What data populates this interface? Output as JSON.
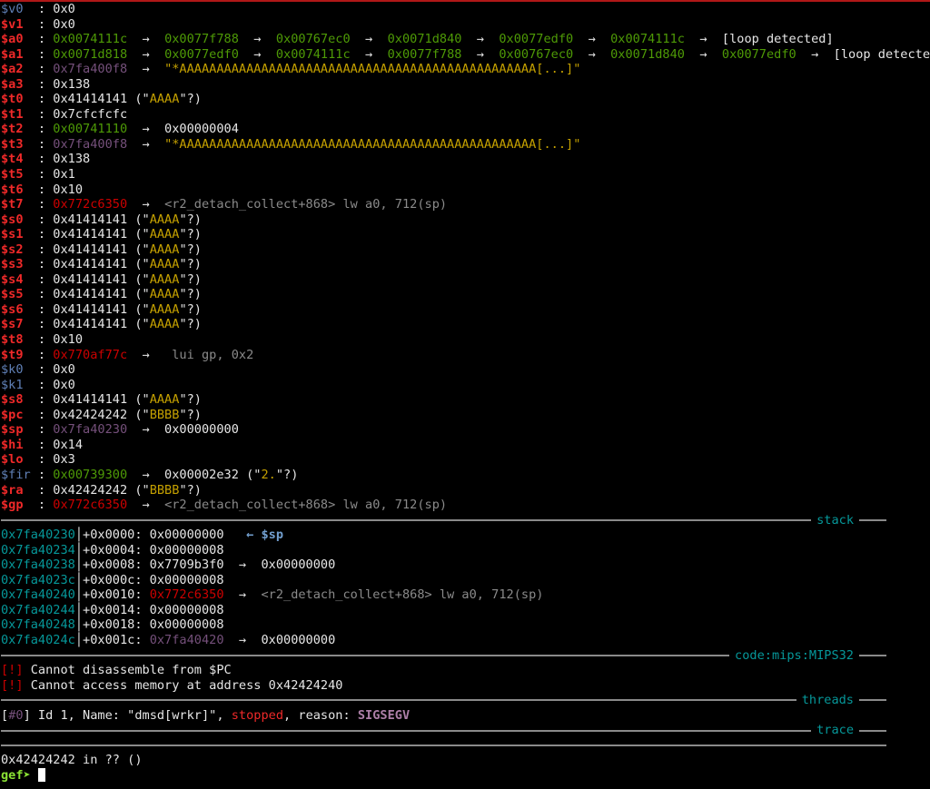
{
  "colors": {
    "accent_border": "#b01818",
    "register": "#ef2929",
    "code_pointer": "#cc0000",
    "heap": "#4e9a06",
    "stack": "#75507b",
    "string": "#c4a000",
    "section_title": "#06989a"
  },
  "lines": [
    [
      [
        "$v0  ",
        "c-blue"
      ],
      [
        ": 0x0",
        "c-w"
      ]
    ],
    [
      [
        "$v1  ",
        "c-red"
      ],
      [
        ": 0x0",
        "c-w"
      ]
    ],
    [
      [
        "$a0  ",
        "c-red"
      ],
      [
        ": ",
        "c-w"
      ],
      [
        "0x0074111c",
        "c-green"
      ],
      [
        "  →  ",
        "c-w"
      ],
      [
        "0x0077f788",
        "c-green"
      ],
      [
        "  →  ",
        "c-w"
      ],
      [
        "0x00767ec0",
        "c-green"
      ],
      [
        "  →  ",
        "c-w"
      ],
      [
        "0x0071d840",
        "c-green"
      ],
      [
        "  →  ",
        "c-w"
      ],
      [
        "0x0077edf0",
        "c-green"
      ],
      [
        "  →  ",
        "c-w"
      ],
      [
        "0x0074111c",
        "c-green"
      ],
      [
        "  →  [loop detected]",
        "c-w"
      ]
    ],
    [
      [
        "$a1  ",
        "c-red"
      ],
      [
        ": ",
        "c-w"
      ],
      [
        "0x0071d818",
        "c-green"
      ],
      [
        "  →  ",
        "c-w"
      ],
      [
        "0x0077edf0",
        "c-green"
      ],
      [
        "  →  ",
        "c-w"
      ],
      [
        "0x0074111c",
        "c-green"
      ],
      [
        "  →  ",
        "c-w"
      ],
      [
        "0x0077f788",
        "c-green"
      ],
      [
        "  →  ",
        "c-w"
      ],
      [
        "0x00767ec0",
        "c-green"
      ],
      [
        "  →  ",
        "c-w"
      ],
      [
        "0x0071d840",
        "c-green"
      ],
      [
        "  →  ",
        "c-w"
      ],
      [
        "0x0077edf0",
        "c-green"
      ],
      [
        "  →  [loop detected]",
        "c-w"
      ]
    ],
    [
      [
        "$a2  ",
        "c-red"
      ],
      [
        ": ",
        "c-w"
      ],
      [
        "0x7fa400f8",
        "c-purple"
      ],
      [
        "  →  ",
        "c-w"
      ],
      [
        "\"*AAAAAAAAAAAAAAAAAAAAAAAAAAAAAAAAAAAAAAAAAAAAAAAA[...]\"",
        "c-yel"
      ]
    ],
    [
      [
        "$a3  ",
        "c-red"
      ],
      [
        ": 0x138",
        "c-w"
      ]
    ],
    [
      [
        "$t0  ",
        "c-red"
      ],
      [
        ": 0x41414141 (\"",
        "c-w"
      ],
      [
        "AAAA",
        "c-yel"
      ],
      [
        "\"?)",
        "c-w"
      ]
    ],
    [
      [
        "$t1  ",
        "c-red"
      ],
      [
        ": 0x7cfcfcfc",
        "c-w"
      ]
    ],
    [
      [
        "$t2  ",
        "c-red"
      ],
      [
        ": ",
        "c-w"
      ],
      [
        "0x00741110",
        "c-green"
      ],
      [
        "  →  0x00000004",
        "c-w"
      ]
    ],
    [
      [
        "$t3  ",
        "c-red"
      ],
      [
        ": ",
        "c-w"
      ],
      [
        "0x7fa400f8",
        "c-purple"
      ],
      [
        "  →  ",
        "c-w"
      ],
      [
        "\"*AAAAAAAAAAAAAAAAAAAAAAAAAAAAAAAAAAAAAAAAAAAAAAAA[...]\"",
        "c-yel"
      ]
    ],
    [
      [
        "$t4  ",
        "c-red"
      ],
      [
        ": 0x138",
        "c-w"
      ]
    ],
    [
      [
        "$t5  ",
        "c-red"
      ],
      [
        ": 0x1",
        "c-w"
      ]
    ],
    [
      [
        "$t6  ",
        "c-red"
      ],
      [
        ": 0x10",
        "c-w"
      ]
    ],
    [
      [
        "$t7  ",
        "c-red"
      ],
      [
        ": ",
        "c-w"
      ],
      [
        "0x772c6350",
        "c-dred"
      ],
      [
        "  →  ",
        "c-w"
      ],
      [
        "<r2_detach_collect+868> lw a0, 712(sp)",
        "c-gray"
      ]
    ],
    [
      [
        "$s0  ",
        "c-red"
      ],
      [
        ": 0x41414141 (\"",
        "c-w"
      ],
      [
        "AAAA",
        "c-yel"
      ],
      [
        "\"?)",
        "c-w"
      ]
    ],
    [
      [
        "$s1  ",
        "c-red"
      ],
      [
        ": 0x41414141 (\"",
        "c-w"
      ],
      [
        "AAAA",
        "c-yel"
      ],
      [
        "\"?)",
        "c-w"
      ]
    ],
    [
      [
        "$s2  ",
        "c-red"
      ],
      [
        ": 0x41414141 (\"",
        "c-w"
      ],
      [
        "AAAA",
        "c-yel"
      ],
      [
        "\"?)",
        "c-w"
      ]
    ],
    [
      [
        "$s3  ",
        "c-red"
      ],
      [
        ": 0x41414141 (\"",
        "c-w"
      ],
      [
        "AAAA",
        "c-yel"
      ],
      [
        "\"?)",
        "c-w"
      ]
    ],
    [
      [
        "$s4  ",
        "c-red"
      ],
      [
        ": 0x41414141 (\"",
        "c-w"
      ],
      [
        "AAAA",
        "c-yel"
      ],
      [
        "\"?)",
        "c-w"
      ]
    ],
    [
      [
        "$s5  ",
        "c-red"
      ],
      [
        ": 0x41414141 (\"",
        "c-w"
      ],
      [
        "AAAA",
        "c-yel"
      ],
      [
        "\"?)",
        "c-w"
      ]
    ],
    [
      [
        "$s6  ",
        "c-red"
      ],
      [
        ": 0x41414141 (\"",
        "c-w"
      ],
      [
        "AAAA",
        "c-yel"
      ],
      [
        "\"?)",
        "c-w"
      ]
    ],
    [
      [
        "$s7  ",
        "c-red"
      ],
      [
        ": 0x41414141 (\"",
        "c-w"
      ],
      [
        "AAAA",
        "c-yel"
      ],
      [
        "\"?)",
        "c-w"
      ]
    ],
    [
      [
        "$t8  ",
        "c-red"
      ],
      [
        ": 0x10",
        "c-w"
      ]
    ],
    [
      [
        "$t9  ",
        "c-red"
      ],
      [
        ": ",
        "c-w"
      ],
      [
        "0x770af77c",
        "c-dred"
      ],
      [
        "  →   ",
        "c-w"
      ],
      [
        "lui gp, 0x2",
        "c-gray"
      ]
    ],
    [
      [
        "$k0  ",
        "c-blue"
      ],
      [
        ": 0x0",
        "c-w"
      ]
    ],
    [
      [
        "$k1  ",
        "c-blue"
      ],
      [
        ": 0x0",
        "c-w"
      ]
    ],
    [
      [
        "$s8  ",
        "c-red"
      ],
      [
        ": 0x41414141 (\"",
        "c-w"
      ],
      [
        "AAAA",
        "c-yel"
      ],
      [
        "\"?)",
        "c-w"
      ]
    ],
    [
      [
        "$pc  ",
        "c-red"
      ],
      [
        ": 0x42424242 (\"",
        "c-w"
      ],
      [
        "BBBB",
        "c-yel"
      ],
      [
        "\"?)",
        "c-w"
      ]
    ],
    [
      [
        "$sp  ",
        "c-red"
      ],
      [
        ": ",
        "c-w"
      ],
      [
        "0x7fa40230",
        "c-purple"
      ],
      [
        "  →  0x00000000",
        "c-w"
      ]
    ],
    [
      [
        "$hi  ",
        "c-red"
      ],
      [
        ": 0x14",
        "c-w"
      ]
    ],
    [
      [
        "$lo  ",
        "c-red"
      ],
      [
        ": 0x3",
        "c-w"
      ]
    ],
    [
      [
        "$fir ",
        "c-blue"
      ],
      [
        ": ",
        "c-w"
      ],
      [
        "0x00739300",
        "c-green"
      ],
      [
        "  →  0x00002e32 (\"",
        "c-w"
      ],
      [
        "2.",
        "c-yel"
      ],
      [
        "\"?)",
        "c-w"
      ]
    ],
    [
      [
        "$ra  ",
        "c-red"
      ],
      [
        ": 0x42424242 (\"",
        "c-w"
      ],
      [
        "BBBB",
        "c-yel"
      ],
      [
        "\"?)",
        "c-w"
      ]
    ],
    [
      [
        "$gp  ",
        "c-red"
      ],
      [
        ": ",
        "c-w"
      ],
      [
        "0x772c6350",
        "c-dred"
      ],
      [
        "  →  ",
        "c-w"
      ],
      [
        "<r2_detach_collect+868> lw a0, 712(sp)",
        "c-gray"
      ]
    ],
    {
      "sep": "stack"
    },
    [
      [
        "0x7fa40230",
        "c-cyan"
      ],
      [
        "│+0x0000: 0x00000000   ",
        "c-w"
      ],
      [
        "← $sp",
        "c-sp"
      ]
    ],
    [
      [
        "0x7fa40234",
        "c-cyan"
      ],
      [
        "│+0x0004: 0x00000008",
        "c-w"
      ]
    ],
    [
      [
        "0x7fa40238",
        "c-cyan"
      ],
      [
        "│+0x0008: 0x7709b3f0  →  0x00000000",
        "c-w"
      ]
    ],
    [
      [
        "0x7fa4023c",
        "c-cyan"
      ],
      [
        "│+0x000c: 0x00000008",
        "c-w"
      ]
    ],
    [
      [
        "0x7fa40240",
        "c-cyan"
      ],
      [
        "│+0x0010: ",
        "c-w"
      ],
      [
        "0x772c6350",
        "c-dred"
      ],
      [
        "  →  ",
        "c-w"
      ],
      [
        "<r2_detach_collect+868> lw a0, 712(sp)",
        "c-gray"
      ]
    ],
    [
      [
        "0x7fa40244",
        "c-cyan"
      ],
      [
        "│+0x0014: 0x00000008",
        "c-w"
      ]
    ],
    [
      [
        "0x7fa40248",
        "c-cyan"
      ],
      [
        "│+0x0018: 0x00000008",
        "c-w"
      ]
    ],
    [
      [
        "0x7fa4024c",
        "c-cyan"
      ],
      [
        "│+0x001c: ",
        "c-w"
      ],
      [
        "0x7fa40420",
        "c-purple"
      ],
      [
        "  →  0x00000000",
        "c-w"
      ]
    ],
    {
      "sep": "code:mips:MIPS32"
    },
    [
      [
        "[!]",
        "c-bang"
      ],
      [
        " Cannot disassemble from $PC",
        "c-w"
      ]
    ],
    [
      [
        "[!]",
        "c-bang"
      ],
      [
        " Cannot access memory at address 0x42424240",
        "c-w"
      ]
    ],
    {
      "sep": "threads"
    },
    [
      [
        "[",
        "c-w"
      ],
      [
        "#0",
        "c-purple"
      ],
      [
        "] Id 1, Name: \"dmsd[wrkr]\", ",
        "c-w"
      ],
      [
        "stopped",
        "c-rd"
      ],
      [
        ", reason: ",
        "c-w"
      ],
      [
        "SIGSEGV",
        "c-mag"
      ]
    ],
    {
      "sep": "trace"
    },
    {
      "sep": ""
    },
    [
      [
        "0x42424242 in ?? ()",
        "c-w"
      ]
    ],
    {
      "prompt": "gef➤ "
    }
  ]
}
